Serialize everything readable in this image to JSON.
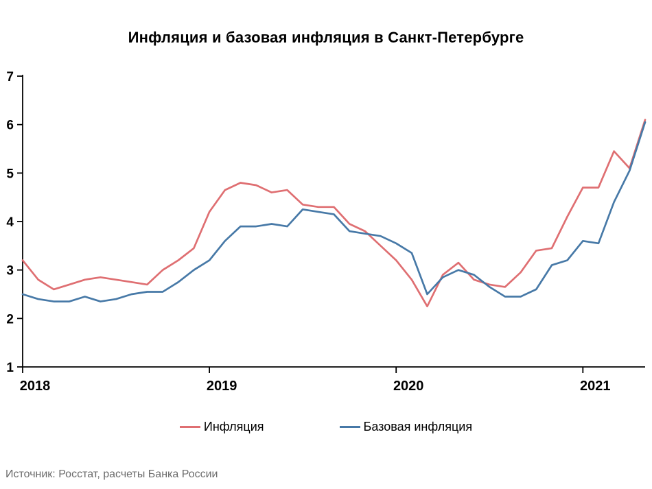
{
  "title": "Инфляция и базовая инфляция в Санкт-Петербурге",
  "source": "Источник: Росстат, расчеты Банка России",
  "legend": [
    {
      "label": "Инфляция",
      "color": "#df6f72"
    },
    {
      "label": "Базовая инфляция",
      "color": "#4779a7"
    }
  ],
  "chart_data": {
    "type": "line",
    "title": "Инфляция и базовая инфляция в Санкт-Петербурге",
    "xlabel": "",
    "ylabel": "",
    "ylim": [
      1,
      7
    ],
    "y_ticks": [
      1,
      2,
      3,
      4,
      5,
      6,
      7
    ],
    "grid": false,
    "legend_position": "bottom",
    "x_unit": "month",
    "x_start": "2018-01",
    "x_end": "2021-05",
    "n_points": 41,
    "x_tick_labels": [
      "2018",
      "2019",
      "2020",
      "2021"
    ],
    "x_tick_point_indices": [
      0,
      12,
      24,
      36
    ],
    "series": [
      {
        "name": "Инфляция",
        "key": "inflation-line",
        "color": "#df6f72",
        "values": [
          3.2,
          2.8,
          2.6,
          2.7,
          2.8,
          2.85,
          2.8,
          2.75,
          2.7,
          3.0,
          3.2,
          3.45,
          4.2,
          4.65,
          4.8,
          4.75,
          4.6,
          4.65,
          4.35,
          4.3,
          4.3,
          3.95,
          3.8,
          3.5,
          3.2,
          2.8,
          2.25,
          2.9,
          3.15,
          2.8,
          2.7,
          2.65,
          2.95,
          3.4,
          3.45,
          4.1,
          4.7,
          4.7,
          5.45,
          5.1,
          6.1
        ]
      },
      {
        "name": "Базовая инфляция",
        "key": "core-inflation-line",
        "color": "#4779a7",
        "values": [
          2.5,
          2.4,
          2.35,
          2.35,
          2.45,
          2.35,
          2.4,
          2.5,
          2.55,
          2.55,
          2.75,
          3.0,
          3.2,
          3.6,
          3.9,
          3.9,
          3.95,
          3.9,
          4.25,
          4.2,
          4.15,
          3.8,
          3.75,
          3.7,
          3.55,
          3.35,
          2.5,
          2.85,
          3.0,
          2.9,
          2.65,
          2.45,
          2.45,
          2.6,
          3.1,
          3.2,
          3.6,
          3.55,
          4.4,
          5.05,
          6.05
        ]
      }
    ]
  }
}
